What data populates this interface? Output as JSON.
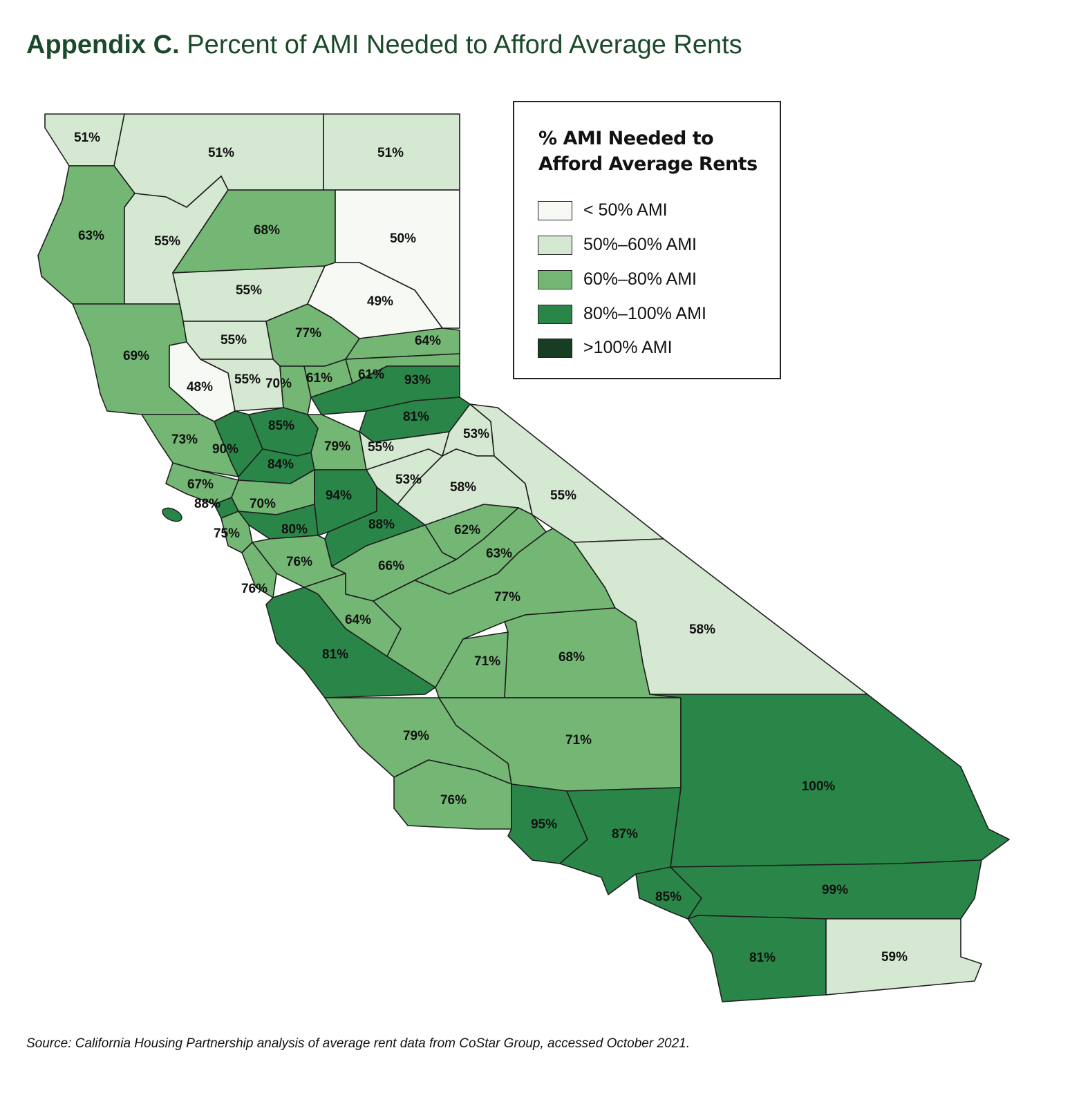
{
  "title": {
    "bold": "Appendix C.",
    "rest": "Percent of AMI Needed to Afford Average Rents"
  },
  "legend": {
    "title_line1": "% AMI Needed to",
    "title_line2": "Afford Average Rents",
    "bins": [
      {
        "label": "< 50% AMI",
        "color": "#f7f9f4"
      },
      {
        "label": "50%–60% AMI",
        "color": "#d5e8d2"
      },
      {
        "label": "60%–80% AMI",
        "color": "#74b774"
      },
      {
        "label": "80%–100% AMI",
        "color": "#2a8648"
      },
      {
        "label": ">100% AMI",
        "color": "#173d22"
      }
    ]
  },
  "counties": [
    {
      "value": 51,
      "label": "51%"
    },
    {
      "value": 51,
      "label": "51%"
    },
    {
      "value": 51,
      "label": "51%"
    },
    {
      "value": 63,
      "label": "63%"
    },
    {
      "value": 55,
      "label": "55%"
    },
    {
      "value": 68,
      "label": "68%"
    },
    {
      "value": 50,
      "label": "50%"
    },
    {
      "value": 55,
      "label": "55%"
    },
    {
      "value": 49,
      "label": "49%"
    },
    {
      "value": 69,
      "label": "69%"
    },
    {
      "value": 55,
      "label": "55%"
    },
    {
      "value": 77,
      "label": "77%"
    },
    {
      "value": 64,
      "label": "64%"
    },
    {
      "value": 48,
      "label": "48%"
    },
    {
      "value": 55,
      "label": "55%"
    },
    {
      "value": 70,
      "label": "70%"
    },
    {
      "value": 61,
      "label": "61%"
    },
    {
      "value": 61,
      "label": "61%"
    },
    {
      "value": 93,
      "label": "93%"
    },
    {
      "value": 81,
      "label": "81%"
    },
    {
      "value": 73,
      "label": "73%"
    },
    {
      "value": 90,
      "label": "90%"
    },
    {
      "value": 85,
      "label": "85%"
    },
    {
      "value": 84,
      "label": "84%"
    },
    {
      "value": 79,
      "label": "79%"
    },
    {
      "value": 55,
      "label": "55%"
    },
    {
      "value": 53,
      "label": "53%"
    },
    {
      "value": 53,
      "label": "53%"
    },
    {
      "value": 58,
      "label": "58%"
    },
    {
      "value": 55,
      "label": "55%"
    },
    {
      "value": 67,
      "label": "67%"
    },
    {
      "value": 88,
      "label": "88%"
    },
    {
      "value": 70,
      "label": "70%"
    },
    {
      "value": 94,
      "label": "94%"
    },
    {
      "value": 80,
      "label": "80%"
    },
    {
      "value": 75,
      "label": "75%"
    },
    {
      "value": 88,
      "label": "88%"
    },
    {
      "value": 62,
      "label": "62%"
    },
    {
      "value": 76,
      "label": "76%"
    },
    {
      "value": 66,
      "label": "66%"
    },
    {
      "value": 63,
      "label": "63%"
    },
    {
      "value": 76,
      "label": "76%"
    },
    {
      "value": 64,
      "label": "64%"
    },
    {
      "value": 81,
      "label": "81%"
    },
    {
      "value": 77,
      "label": "77%"
    },
    {
      "value": 58,
      "label": "58%"
    },
    {
      "value": 71,
      "label": "71%"
    },
    {
      "value": 68,
      "label": "68%"
    },
    {
      "value": 79,
      "label": "79%"
    },
    {
      "value": 71,
      "label": "71%"
    },
    {
      "value": 100,
      "label": "100%"
    },
    {
      "value": 76,
      "label": "76%"
    },
    {
      "value": 95,
      "label": "95%"
    },
    {
      "value": 87,
      "label": "87%"
    },
    {
      "value": 85,
      "label": "85%"
    },
    {
      "value": 99,
      "label": "99%"
    },
    {
      "value": 81,
      "label": "81%"
    },
    {
      "value": 59,
      "label": "59%"
    }
  ],
  "source": "Source: California Housing Partnership analysis of average rent data from CoStar Group, accessed October 2021."
}
